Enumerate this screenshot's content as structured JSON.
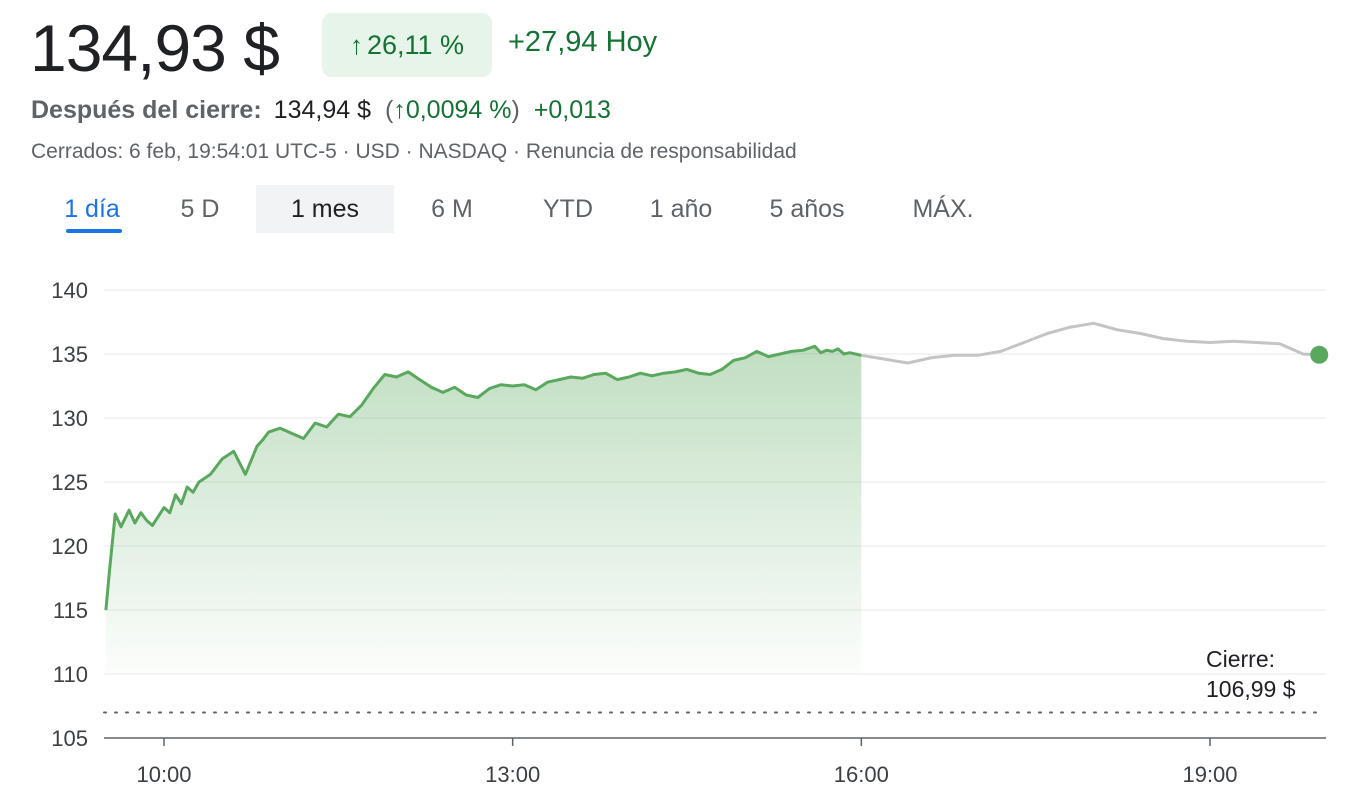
{
  "quote": {
    "price": "134,93 $",
    "change_pct_arrow": "↑",
    "change_pct": "26,11 %",
    "change_abs_label": "+27,94 Hoy"
  },
  "after_hours": {
    "label": "Después del cierre:",
    "price": "134,94 $",
    "pct_open": "(",
    "pct_arrow": "↑",
    "pct": "0,0094 %",
    "pct_close": ")",
    "change": "+0,013"
  },
  "meta": {
    "text": "Cerrados: 6 feb, 19:54:01 UTC-5 · USD · NASDAQ · Renuncia de responsabilidad"
  },
  "tabs": [
    {
      "label": "1 día",
      "active": true
    },
    {
      "label": "5 D",
      "active": false
    },
    {
      "label": "1 mes",
      "active": false
    },
    {
      "label": "6 M",
      "active": false
    },
    {
      "label": "YTD",
      "active": false
    },
    {
      "label": "1 año",
      "active": false
    },
    {
      "label": "5 años",
      "active": false
    },
    {
      "label": "MÁX.",
      "active": false
    }
  ],
  "close_annotation": {
    "label": "Cierre:",
    "value": "106,99 $"
  },
  "colors": {
    "up": "#137333",
    "line_regular": "#5aa85e",
    "line_after": "#c4c4c4",
    "accent": "#1a73e8"
  },
  "chart_data": {
    "type": "line",
    "ylim": [
      105,
      140
    ],
    "y_ticks": [
      105,
      110,
      115,
      120,
      125,
      130,
      135,
      140
    ],
    "x_range_hours": [
      9.5,
      20.0
    ],
    "x_ticks": [
      {
        "value": 10,
        "label": "10:00"
      },
      {
        "value": 13,
        "label": "13:00"
      },
      {
        "value": 16,
        "label": "16:00"
      },
      {
        "value": 19,
        "label": "19:00"
      }
    ],
    "previous_close": 106.99,
    "series": [
      {
        "session": "regular",
        "x": [
          9.5,
          9.53,
          9.58,
          9.63,
          9.7,
          9.75,
          9.8,
          9.85,
          9.9,
          9.95,
          10.0,
          10.05,
          10.1,
          10.15,
          10.2,
          10.25,
          10.3,
          10.35,
          10.4,
          10.5,
          10.6,
          10.7,
          10.8,
          10.85,
          10.9,
          11.0,
          11.1,
          11.2,
          11.3,
          11.4,
          11.5,
          11.6,
          11.7,
          11.8,
          11.9,
          12.0,
          12.1,
          12.2,
          12.3,
          12.4,
          12.5,
          12.6,
          12.7,
          12.8,
          12.9,
          13.0,
          13.1,
          13.2,
          13.3,
          13.4,
          13.5,
          13.6,
          13.7,
          13.8,
          13.9,
          14.0,
          14.1,
          14.2,
          14.3,
          14.4,
          14.5,
          14.6,
          14.7,
          14.8,
          14.9,
          15.0,
          15.1,
          15.2,
          15.3,
          15.4,
          15.5,
          15.6,
          15.65,
          15.7,
          15.75,
          15.8,
          15.85,
          15.9,
          16.0
        ],
        "y": [
          115.0,
          118.0,
          122.5,
          121.5,
          122.8,
          121.8,
          122.6,
          122.0,
          121.6,
          122.3,
          123.0,
          122.6,
          124.0,
          123.3,
          124.6,
          124.2,
          125.0,
          125.3,
          125.6,
          126.8,
          127.4,
          125.6,
          127.8,
          128.3,
          128.9,
          129.2,
          128.8,
          128.4,
          129.6,
          129.3,
          130.3,
          130.1,
          131.0,
          132.3,
          133.4,
          133.2,
          133.6,
          133.0,
          132.4,
          132.0,
          132.4,
          131.8,
          131.6,
          132.3,
          132.6,
          132.5,
          132.6,
          132.2,
          132.8,
          133.0,
          133.2,
          133.1,
          133.4,
          133.5,
          133.0,
          133.2,
          133.5,
          133.3,
          133.5,
          133.6,
          133.8,
          133.5,
          133.4,
          133.8,
          134.5,
          134.7,
          135.2,
          134.8,
          135.0,
          135.2,
          135.3,
          135.6,
          135.1,
          135.3,
          135.2,
          135.4,
          135.0,
          135.1,
          134.9
        ]
      },
      {
        "session": "after_hours",
        "x": [
          16.0,
          16.2,
          16.4,
          16.6,
          16.8,
          17.0,
          17.2,
          17.4,
          17.6,
          17.8,
          18.0,
          18.2,
          18.4,
          18.6,
          18.8,
          19.0,
          19.2,
          19.4,
          19.6,
          19.8,
          19.94
        ],
        "y": [
          134.9,
          134.6,
          134.3,
          134.7,
          134.9,
          134.9,
          135.2,
          135.9,
          136.6,
          137.1,
          137.4,
          136.9,
          136.6,
          136.2,
          136.0,
          135.9,
          136.0,
          135.9,
          135.8,
          135.0,
          134.94
        ]
      }
    ],
    "last_point": {
      "x": 19.94,
      "y": 134.94
    }
  }
}
